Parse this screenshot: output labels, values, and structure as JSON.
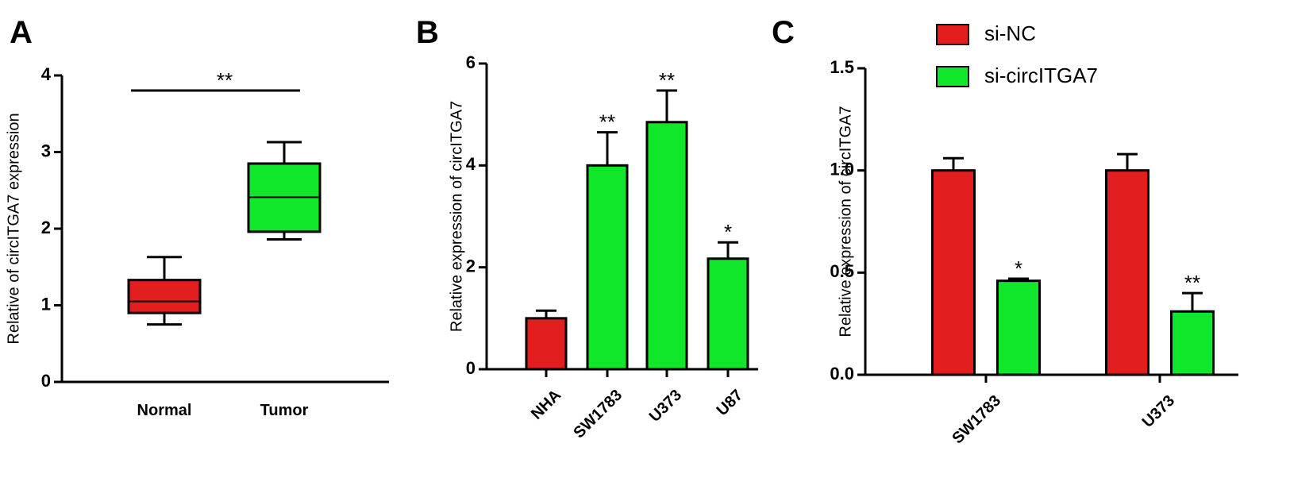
{
  "chart_data": [
    {
      "type": "box",
      "panel": "A",
      "y_label": "Relative  of circITGA7 expression",
      "categories": [
        "Normal",
        "Tumor"
      ],
      "colors": [
        "#e31e1e",
        "#10e62a"
      ],
      "min": [
        0.75,
        1.86
      ],
      "q1": [
        0.9,
        1.96
      ],
      "median": [
        1.05,
        2.41
      ],
      "q3": [
        1.33,
        2.85
      ],
      "max": [
        1.63,
        3.13
      ],
      "annotation": "**",
      "ylim": [
        0,
        4
      ],
      "yticks": [
        0,
        1,
        2,
        3,
        4
      ]
    },
    {
      "type": "bar",
      "panel": "B",
      "y_label": "Relative expression of circITGA7",
      "categories": [
        "NHA",
        "SW1783",
        "U373",
        "U87"
      ],
      "values": [
        1.0,
        4.0,
        4.85,
        2.17
      ],
      "errors": [
        0.15,
        0.65,
        0.62,
        0.32
      ],
      "colors": [
        "#e31e1e",
        "#10e62a",
        "#10e62a",
        "#10e62a"
      ],
      "significance": [
        null,
        "**",
        "**",
        "*"
      ],
      "ylim": [
        0,
        6
      ],
      "yticks": [
        0,
        2,
        4,
        6
      ]
    },
    {
      "type": "grouped_bar",
      "panel": "C",
      "y_label": "Relative expression of circITGA7",
      "categories": [
        "SW1783",
        "U373"
      ],
      "series": [
        {
          "name": "si-NC",
          "color": "#e31e1e",
          "values": [
            1.0,
            1.0
          ],
          "errors": [
            0.06,
            0.08
          ],
          "significance": [
            null,
            null
          ]
        },
        {
          "name": "si-circITGA7",
          "color": "#10e62a",
          "values": [
            0.46,
            0.31
          ],
          "errors": [
            0.01,
            0.09
          ],
          "significance": [
            "*",
            "**"
          ]
        }
      ],
      "ylim": [
        0,
        1.5
      ],
      "yticks": [
        {
          "value": 0,
          "label": "0.0"
        },
        {
          "value": 0.5,
          "label": "0.5"
        },
        {
          "value": 1,
          "label": "1.0"
        },
        {
          "value": 1.5,
          "label": "1.5"
        }
      ]
    }
  ]
}
